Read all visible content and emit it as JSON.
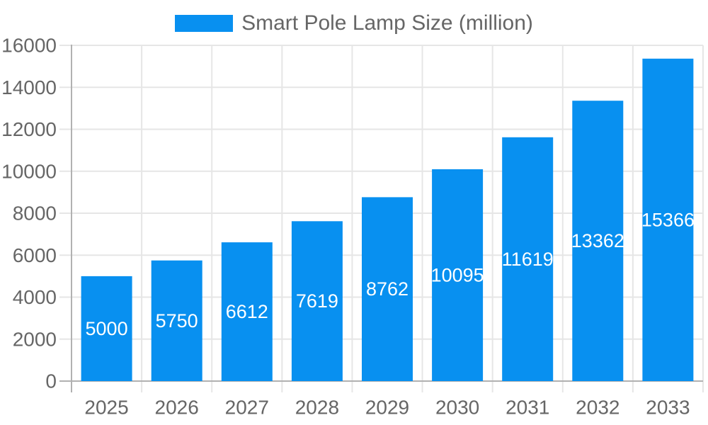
{
  "chart_data": {
    "type": "bar",
    "title": "Smart Pole Lamp Size (million)",
    "legend_entries": [
      "Smart Pole Lamp Size (million)"
    ],
    "legend_position": "top-center",
    "categories": [
      "2025",
      "2026",
      "2027",
      "2028",
      "2029",
      "2030",
      "2031",
      "2032",
      "2033"
    ],
    "values": [
      5000,
      5750,
      6612,
      7619,
      8762,
      10095,
      11619,
      13362,
      15366
    ],
    "value_labels_shown": true,
    "xlabel": "",
    "ylabel": "",
    "ylim": [
      0,
      16000
    ],
    "ytick_step": 2000,
    "yticks": [
      0,
      2000,
      4000,
      6000,
      8000,
      10000,
      12000,
      14000,
      16000
    ],
    "grid": true,
    "colors": {
      "bar": "#0890f0",
      "value_label": "#ffffff",
      "axis_text": "#666666",
      "legend_text": "#666666",
      "grid_line": "#e6e6e6",
      "axis_line": "#b1b1b1",
      "background": "#ffffff"
    }
  }
}
